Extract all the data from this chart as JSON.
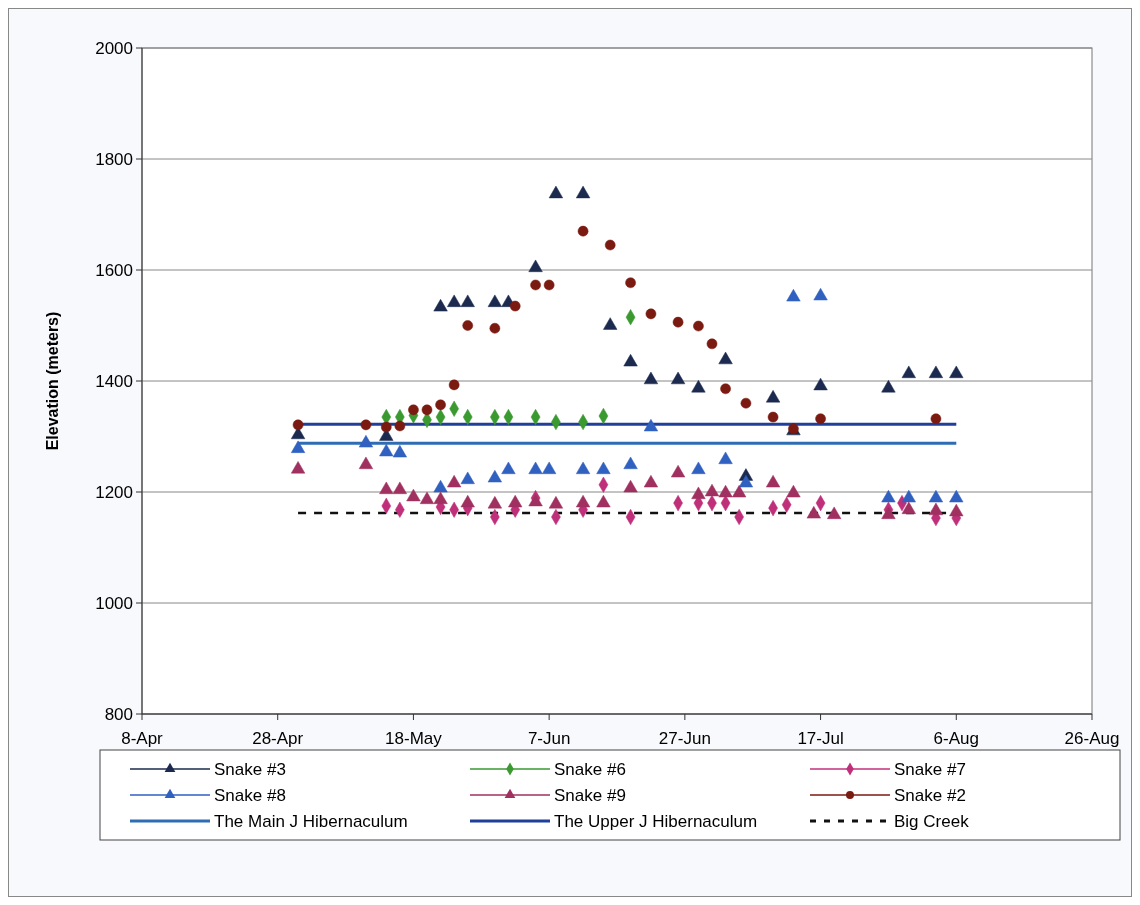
{
  "chart_data": {
    "type": "scatter",
    "ylabel": "Elevation (meters)",
    "xlim": [
      "--04-08",
      "--08-26"
    ],
    "xticks": [
      {
        "value": "--04-08",
        "label": "8-Apr"
      },
      {
        "value": "--04-28",
        "label": "28-Apr"
      },
      {
        "value": "--05-18",
        "label": "18-May"
      },
      {
        "value": "--06-07",
        "label": "7-Jun"
      },
      {
        "value": "--06-27",
        "label": "27-Jun"
      },
      {
        "value": "--07-17",
        "label": "17-Jul"
      },
      {
        "value": "--08-06",
        "label": "6-Aug"
      },
      {
        "value": "--08-26",
        "label": "26-Aug"
      }
    ],
    "ylim": [
      800,
      2000
    ],
    "yticks": [
      800,
      1000,
      1200,
      1400,
      1600,
      1800,
      2000
    ],
    "grid": "y",
    "legend": "bottom",
    "series": [
      {
        "name": "Snake #3",
        "color": "#1b2a4e",
        "marker": "triangle",
        "x": [
          "--05-01",
          "--05-14",
          "--05-22",
          "--05-24",
          "--05-26",
          "--05-30",
          "--06-01",
          "--06-05",
          "--06-08",
          "--06-12",
          "--06-16",
          "--06-19",
          "--06-22",
          "--06-26",
          "--06-29",
          "--07-03",
          "--07-06",
          "--07-10",
          "--07-13",
          "--07-17",
          "--07-27",
          "--07-30",
          "--08-03",
          "--08-06"
        ],
        "values": [
          1303,
          1300,
          1533,
          1541,
          1541,
          1541,
          1541,
          1604,
          1737,
          1737,
          1500,
          1434,
          1402,
          1402,
          1387,
          1438,
          1228,
          1369,
          1310,
          1391,
          1387,
          1413,
          1413,
          1413
        ]
      },
      {
        "name": "Snake #6",
        "color": "#3a9a30",
        "marker": "diamond",
        "x": [
          "--05-14",
          "--05-16",
          "--05-18",
          "--05-20",
          "--05-22",
          "--05-24",
          "--05-26",
          "--05-30",
          "--06-01",
          "--06-05",
          "--06-08",
          "--06-12",
          "--06-15",
          "--06-19"
        ],
        "values": [
          1335,
          1335,
          1338,
          1330,
          1335,
          1350,
          1335,
          1335,
          1335,
          1335,
          1326,
          1326,
          1337,
          1515
        ]
      },
      {
        "name": "Snake #7",
        "color": "#c0307a",
        "marker": "diamond",
        "x": [
          "--05-14",
          "--05-16",
          "--05-22",
          "--05-24",
          "--05-26",
          "--05-30",
          "--06-02",
          "--06-05",
          "--06-08",
          "--06-12",
          "--06-15",
          "--06-19",
          "--06-26",
          "--06-29",
          "--07-01",
          "--07-03",
          "--07-05",
          "--07-10",
          "--07-12",
          "--07-17",
          "--07-27",
          "--07-29",
          "--08-03",
          "--08-06"
        ],
        "values": [
          1175,
          1168,
          1173,
          1168,
          1171,
          1155,
          1168,
          1189,
          1155,
          1168,
          1213,
          1155,
          1180,
          1180,
          1180,
          1180,
          1155,
          1171,
          1177,
          1180,
          1168,
          1180,
          1153,
          1153
        ]
      },
      {
        "name": "Snake #8",
        "color": "#3060c0",
        "marker": "triangle",
        "x": [
          "--05-01",
          "--05-11",
          "--05-14",
          "--05-16",
          "--05-22",
          "--05-26",
          "--05-30",
          "--06-01",
          "--06-05",
          "--06-07",
          "--06-12",
          "--06-15",
          "--06-19",
          "--06-22",
          "--06-29",
          "--07-03",
          "--07-06",
          "--07-13",
          "--07-17",
          "--07-27",
          "--07-30",
          "--08-03",
          "--08-06"
        ],
        "values": [
          1278,
          1288,
          1272,
          1270,
          1207,
          1222,
          1225,
          1240,
          1240,
          1240,
          1240,
          1240,
          1249,
          1317,
          1240,
          1258,
          1216,
          1551,
          1553,
          1189,
          1189,
          1189,
          1189
        ]
      },
      {
        "name": "Snake #9",
        "color": "#a03060",
        "marker": "triangle",
        "x": [
          "--05-01",
          "--05-11",
          "--05-14",
          "--05-16",
          "--05-18",
          "--05-20",
          "--05-22",
          "--05-24",
          "--05-26",
          "--05-30",
          "--06-02",
          "--06-05",
          "--06-08",
          "--06-12",
          "--06-15",
          "--06-19",
          "--06-22",
          "--06-26",
          "--06-29",
          "--07-01",
          "--07-03",
          "--07-05",
          "--07-10",
          "--07-13",
          "--07-16",
          "--07-19",
          "--07-27",
          "--07-30",
          "--08-03",
          "--08-06"
        ],
        "values": [
          1241,
          1249,
          1204,
          1204,
          1191,
          1186,
          1186,
          1216,
          1180,
          1178,
          1180,
          1182,
          1178,
          1180,
          1180,
          1207,
          1216,
          1234,
          1195,
          1200,
          1198,
          1198,
          1216,
          1198,
          1160,
          1159,
          1159,
          1168,
          1166,
          1164
        ]
      },
      {
        "name": "Snake #2",
        "color": "#7a1a10",
        "marker": "circle",
        "x": [
          "--05-01",
          "--05-11",
          "--05-14",
          "--05-16",
          "--05-18",
          "--05-20",
          "--05-22",
          "--05-24",
          "--05-26",
          "--05-30",
          "--06-02",
          "--06-05",
          "--06-07",
          "--06-12",
          "--06-16",
          "--06-19",
          "--06-22",
          "--06-26",
          "--06-29",
          "--07-01",
          "--07-03",
          "--07-06",
          "--07-10",
          "--07-13",
          "--07-17",
          "--08-03"
        ],
        "values": [
          1321,
          1321,
          1317,
          1319,
          1348,
          1348,
          1357,
          1393,
          1500,
          1495,
          1535,
          1573,
          1573,
          1670,
          1645,
          1577,
          1521,
          1506,
          1499,
          1467,
          1386,
          1360,
          1335,
          1314,
          1332,
          1332
        ]
      },
      {
        "name": "The Main J Hibernaculum",
        "type": "line",
        "color": "#2e6db4",
        "marker": "none",
        "line_style": "solid",
        "x": [
          "--05-01",
          "--08-06"
        ],
        "values": [
          1288,
          1288
        ]
      },
      {
        "name": "The Upper J Hibernaculum",
        "type": "line",
        "color": "#1f3f9a",
        "marker": "none",
        "line_style": "solid",
        "x": [
          "--05-01",
          "--08-06"
        ],
        "values": [
          1322,
          1322
        ]
      },
      {
        "name": "Big Creek",
        "type": "line",
        "color": "#111111",
        "marker": "none",
        "line_style": "dashed",
        "x": [
          "--05-01",
          "--08-06"
        ],
        "values": [
          1162,
          1162
        ]
      }
    ]
  }
}
